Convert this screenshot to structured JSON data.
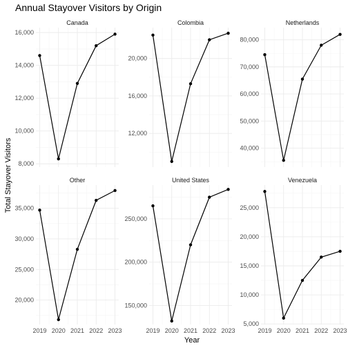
{
  "chart_data": {
    "type": "line",
    "title": "Annual Stayover Visitors by Origin",
    "xlabel": "Year",
    "ylabel": "Total Stayover Visitors",
    "x": [
      2019,
      2020,
      2021,
      2022,
      2023
    ],
    "x_ticks": [
      "2019",
      "2020",
      "2021",
      "2022",
      "2023"
    ],
    "grid": true,
    "facet_scales": "free_y",
    "panels": [
      {
        "name": "Canada",
        "values": [
          14600,
          8300,
          12900,
          15200,
          15900
        ],
        "ylim": [
          7800,
          16300
        ],
        "y_ticks": [
          8000,
          10000,
          12000,
          14000,
          16000
        ],
        "y_tick_labels": [
          "8,000",
          "10,000",
          "12,000",
          "14,000",
          "16,000"
        ]
      },
      {
        "name": "Colombia",
        "values": [
          22500,
          9000,
          17300,
          22000,
          22700
        ],
        "ylim": [
          8400,
          23300
        ],
        "y_ticks": [
          12000,
          16000,
          20000
        ],
        "y_tick_labels": [
          "12,000",
          "16,000",
          "20,000"
        ]
      },
      {
        "name": "Netherlands",
        "values": [
          74500,
          35500,
          65500,
          78000,
          82000
        ],
        "ylim": [
          33000,
          84500
        ],
        "y_ticks": [
          40000,
          50000,
          60000,
          70000,
          80000
        ],
        "y_tick_labels": [
          "40,000",
          "50,000",
          "60,000",
          "70,000",
          "80,000"
        ]
      },
      {
        "name": "Other",
        "values": [
          34700,
          16800,
          28300,
          36300,
          37900
        ],
        "ylim": [
          16000,
          38800
        ],
        "y_ticks": [
          20000,
          25000,
          30000,
          35000
        ],
        "y_tick_labels": [
          "20,000",
          "25,000",
          "30,000",
          "35,000"
        ]
      },
      {
        "name": "United States",
        "values": [
          265000,
          132000,
          220000,
          275000,
          284000
        ],
        "ylim": [
          128000,
          289000
        ],
        "y_ticks": [
          150000,
          200000,
          250000
        ],
        "y_tick_labels": [
          "150,000",
          "200,000",
          "250,000"
        ]
      },
      {
        "name": "Venezuela",
        "values": [
          27800,
          6000,
          12500,
          16500,
          17500
        ],
        "ylim": [
          4900,
          28900
        ],
        "y_ticks": [
          5000,
          10000,
          15000,
          20000,
          25000
        ],
        "y_tick_labels": [
          "5,000",
          "10,000",
          "15,000",
          "20,000",
          "25,000"
        ]
      }
    ]
  }
}
